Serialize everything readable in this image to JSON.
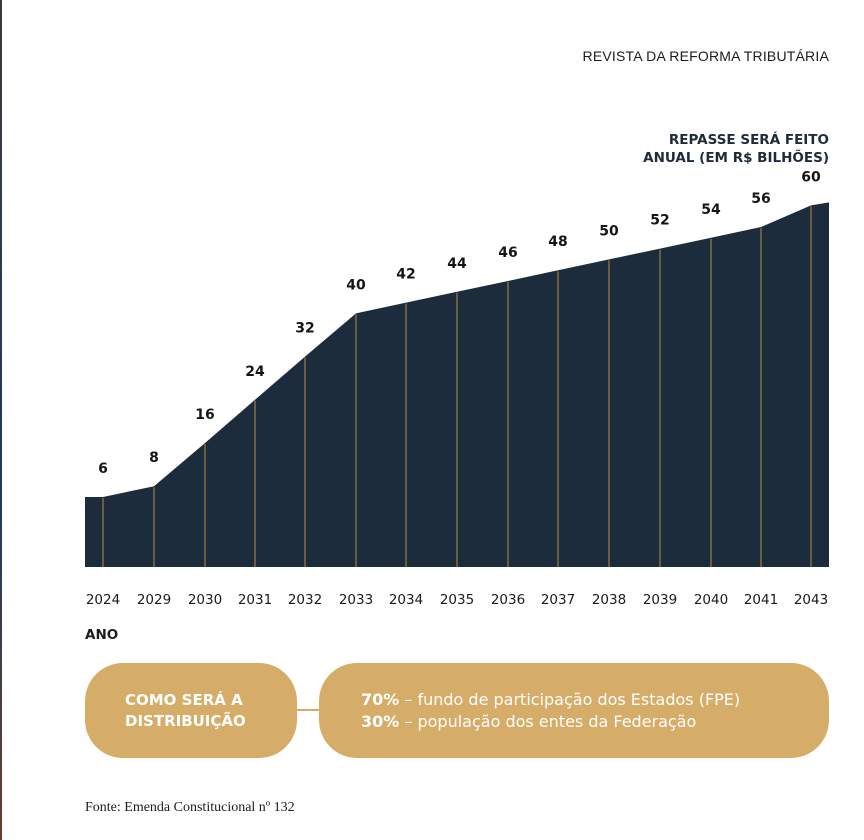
{
  "header": {
    "title": "REVISTA DA REFORMA TRIBUTÁRIA"
  },
  "chart_data": {
    "type": "area",
    "title_line1": "REPASSE SERÁ FEITO",
    "title_line2": "ANUAL (EM R$ BILHÕES)",
    "xlabel": "ANO",
    "ylabel": "",
    "categories": [
      "2024",
      "2029",
      "2030",
      "2031",
      "2032",
      "2033",
      "2034",
      "2035",
      "2036",
      "2037",
      "2038",
      "2039",
      "2040",
      "2041",
      "2043"
    ],
    "values": [
      6,
      8,
      16,
      24,
      32,
      40,
      42,
      44,
      46,
      48,
      50,
      52,
      54,
      56,
      60
    ],
    "colors": {
      "area": "#1d2c3d",
      "gridline": "#b58b45"
    }
  },
  "distribution": {
    "heading_line1": "COMO SERÁ A",
    "heading_line2": "DISTRIBUIÇÃO",
    "item1_pct": "70%",
    "item1_text": " – fundo de participação dos Estados (FPE)",
    "item2_pct": "30%",
    "item2_text": " – população dos entes da Federação",
    "accent": "#d6ad68"
  },
  "source": "Fonte: Emenda Constitucional nº 132"
}
